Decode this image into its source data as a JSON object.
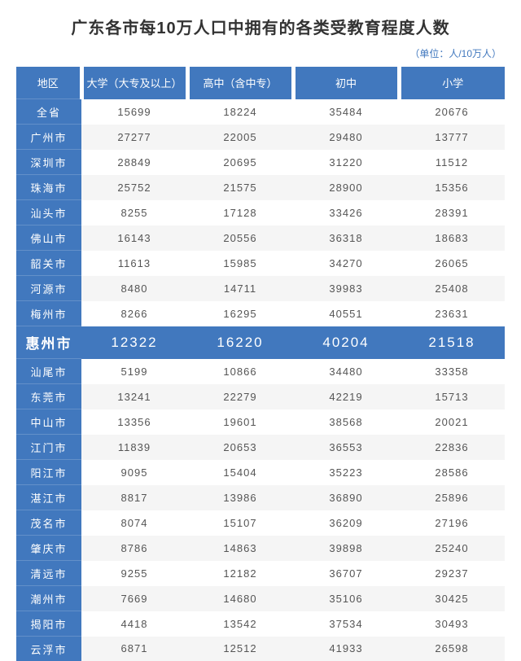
{
  "title": "广东各市每10万人口中拥有的各类受教育程度人数",
  "unit": "（单位：人/10万人）",
  "columns": [
    "地区",
    "大学（大专及以上）",
    "高中（含中专）",
    "初中",
    "小学"
  ],
  "highlight_region": "惠州市",
  "header_bg": "#4178be",
  "header_text": "#ffffff",
  "alt_row_bg": "#f5f5f5",
  "rows": [
    {
      "region": "全省",
      "values": [
        "15699",
        "18224",
        "35484",
        "20676"
      ]
    },
    {
      "region": "广州市",
      "values": [
        "27277",
        "22005",
        "29480",
        "13777"
      ]
    },
    {
      "region": "深圳市",
      "values": [
        "28849",
        "20695",
        "31220",
        "11512"
      ]
    },
    {
      "region": "珠海市",
      "values": [
        "25752",
        "21575",
        "28900",
        "15356"
      ]
    },
    {
      "region": "汕头市",
      "values": [
        "8255",
        "17128",
        "33426",
        "28391"
      ]
    },
    {
      "region": "佛山市",
      "values": [
        "16143",
        "20556",
        "36318",
        "18683"
      ]
    },
    {
      "region": "韶关市",
      "values": [
        "11613",
        "15985",
        "34270",
        "26065"
      ]
    },
    {
      "region": "河源市",
      "values": [
        "8480",
        "14711",
        "39983",
        "25408"
      ]
    },
    {
      "region": "梅州市",
      "values": [
        "8266",
        "16295",
        "40551",
        "23631"
      ]
    },
    {
      "region": "惠州市",
      "values": [
        "12322",
        "16220",
        "40204",
        "21518"
      ]
    },
    {
      "region": "汕尾市",
      "values": [
        "5199",
        "10866",
        "34480",
        "33358"
      ]
    },
    {
      "region": "东莞市",
      "values": [
        "13241",
        "22279",
        "42219",
        "15713"
      ]
    },
    {
      "region": "中山市",
      "values": [
        "13356",
        "19601",
        "38568",
        "20021"
      ]
    },
    {
      "region": "江门市",
      "values": [
        "11839",
        "20653",
        "36553",
        "22836"
      ]
    },
    {
      "region": "阳江市",
      "values": [
        "9095",
        "15404",
        "35223",
        "28586"
      ]
    },
    {
      "region": "湛江市",
      "values": [
        "8817",
        "13986",
        "36890",
        "25896"
      ]
    },
    {
      "region": "茂名市",
      "values": [
        "8074",
        "15107",
        "36209",
        "27196"
      ]
    },
    {
      "region": "肇庆市",
      "values": [
        "8786",
        "14863",
        "39898",
        "25240"
      ]
    },
    {
      "region": "清远市",
      "values": [
        "9255",
        "12182",
        "36707",
        "29237"
      ]
    },
    {
      "region": "潮州市",
      "values": [
        "7669",
        "14680",
        "35106",
        "30425"
      ]
    },
    {
      "region": "揭阳市",
      "values": [
        "4418",
        "13542",
        "37534",
        "30493"
      ]
    },
    {
      "region": "云浮市",
      "values": [
        "6871",
        "12512",
        "41933",
        "26598"
      ]
    }
  ]
}
